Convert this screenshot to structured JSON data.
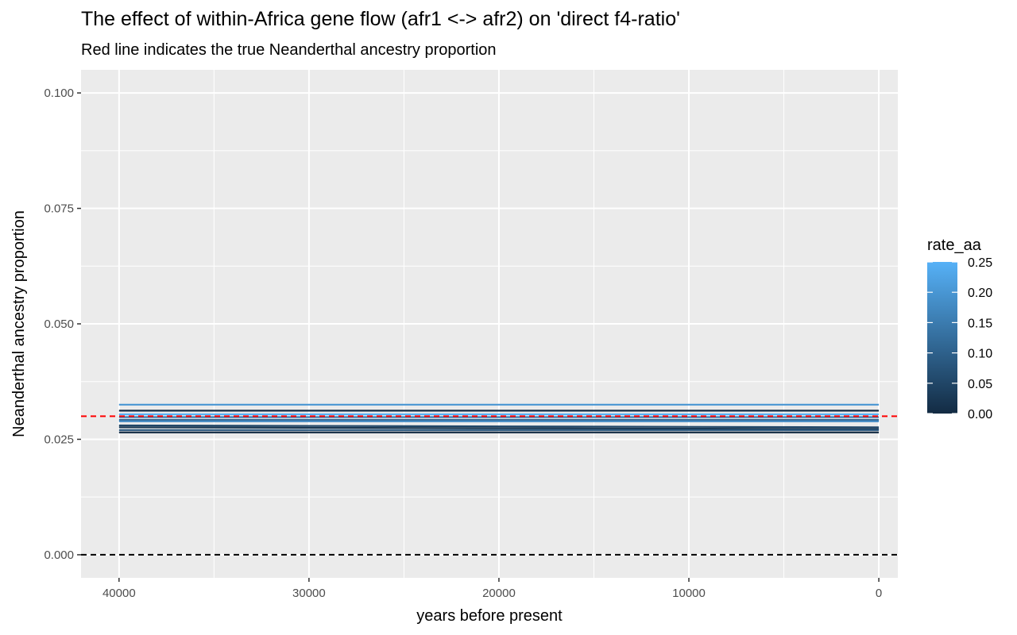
{
  "chart_data": {
    "type": "line",
    "title": "The effect of within-Africa gene flow (afr1 <-> afr2) on 'direct f4-ratio'",
    "subtitle": "Red line indicates the true Neanderthal ancestry proportion",
    "xlabel": "years before present",
    "ylabel": "Neanderthal ancestry proportion",
    "x_reversed": true,
    "xlim": [
      42000,
      -1000
    ],
    "ylim": [
      -0.005,
      0.105
    ],
    "x_major_ticks": [
      40000,
      30000,
      20000,
      10000,
      0
    ],
    "x_minor_ticks": [
      35000,
      25000,
      15000,
      5000
    ],
    "y_major_ticks": [
      0.0,
      0.025,
      0.05,
      0.075,
      0.1
    ],
    "y_minor_ticks": [
      0.0125,
      0.0375,
      0.0625,
      0.0875
    ],
    "x_tick_labels": [
      "40000",
      "30000",
      "20000",
      "10000",
      "0"
    ],
    "y_tick_labels": [
      "0.000",
      "0.025",
      "0.050",
      "0.075",
      "0.100"
    ],
    "grid": true,
    "reference_lines": [
      {
        "y": 0.03,
        "color": "#ff0000",
        "style": "dashed"
      },
      {
        "y": 0.0,
        "color": "#000000",
        "style": "dashed"
      }
    ],
    "color_scale": {
      "variable": "rate_aa",
      "low": "#132b43",
      "high": "#56b1f7",
      "range": [
        0.0,
        0.25
      ],
      "legend_title": "rate_aa",
      "legend_ticks": [
        "0.00",
        "0.05",
        "0.10",
        "0.15",
        "0.20",
        "0.25"
      ],
      "legend_placement": "right"
    },
    "series": [
      {
        "rate_aa": 0.2,
        "x": [
          40000,
          0
        ],
        "y": [
          0.0325,
          0.0325
        ]
      },
      {
        "rate_aa": 0.0,
        "x": [
          40000,
          0
        ],
        "y": [
          0.0312,
          0.0312
        ]
      },
      {
        "rate_aa": 0.25,
        "x": [
          40000,
          0
        ],
        "y": [
          0.0304,
          0.0304
        ]
      },
      {
        "rate_aa": 0.15,
        "x": [
          40000,
          0
        ],
        "y": [
          0.0298,
          0.0298
        ]
      },
      {
        "rate_aa": 0.1,
        "x": [
          40000,
          0
        ],
        "y": [
          0.0292,
          0.0292
        ]
      },
      {
        "rate_aa": 0.18,
        "x": [
          40000,
          0
        ],
        "y": [
          0.0289,
          0.0289
        ]
      },
      {
        "rate_aa": 0.05,
        "x": [
          40000,
          0
        ],
        "y": [
          0.028,
          0.0276
        ]
      },
      {
        "rate_aa": 0.02,
        "x": [
          40000,
          0
        ],
        "y": [
          0.0276,
          0.0272
        ]
      },
      {
        "rate_aa": 0.08,
        "x": [
          40000,
          0
        ],
        "y": [
          0.027,
          0.027
        ]
      },
      {
        "rate_aa": 0.0,
        "x": [
          40000,
          0
        ],
        "y": [
          0.0265,
          0.0265
        ]
      }
    ]
  }
}
